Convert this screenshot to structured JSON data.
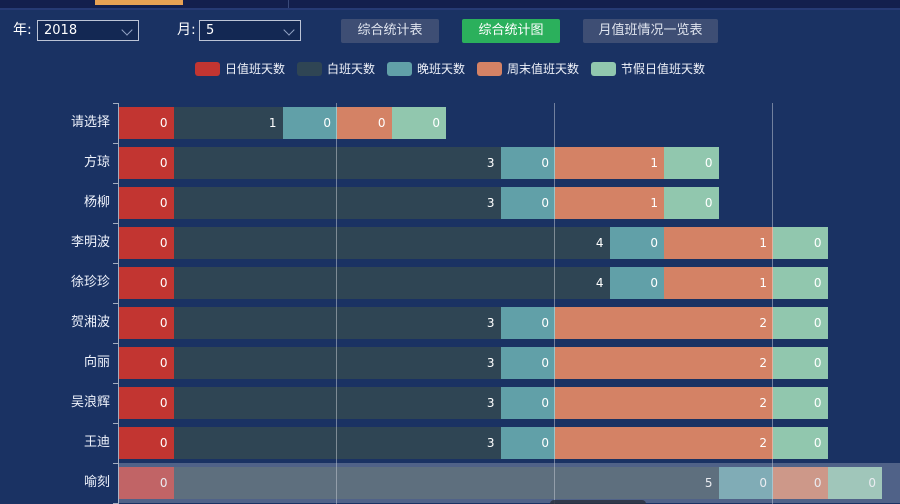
{
  "controls": {
    "year_label": "年:",
    "year_value": "2018",
    "month_label": "月:",
    "month_value": "5",
    "buttons": [
      {
        "label": "综合统计表",
        "type": "default"
      },
      {
        "label": "综合统计图",
        "type": "active",
        "color": "#2bb05c"
      },
      {
        "label": "月值班情况一览表",
        "type": "default"
      }
    ]
  },
  "legend": [
    {
      "label": "日值班天数",
      "color": "#c23531"
    },
    {
      "label": "白班天数",
      "color": "#2f4554"
    },
    {
      "label": "晚班天数",
      "color": "#61a0a8"
    },
    {
      "label": "周末值班天数",
      "color": "#d48265"
    },
    {
      "label": "节假日值班天数",
      "color": "#91c7ae"
    }
  ],
  "chart_data": {
    "type": "bar",
    "orientation": "horizontal",
    "stacked": true,
    "grid": true,
    "legend_position": "top-center",
    "categories": [
      "请选择",
      "方琼",
      "杨柳",
      "李明波",
      "徐珍珍",
      "贺湘波",
      "向丽",
      "吴浪辉",
      "王迪",
      "喻刻"
    ],
    "series": [
      {
        "name": "日值班天数",
        "color": "#c23531",
        "values": [
          0,
          0,
          0,
          0,
          0,
          0,
          0,
          0,
          0,
          0
        ]
      },
      {
        "name": "白班天数",
        "color": "#2f4554",
        "values": [
          1,
          3,
          3,
          4,
          4,
          3,
          3,
          3,
          3,
          5
        ]
      },
      {
        "name": "晚班天数",
        "color": "#61a0a8",
        "values": [
          0,
          0,
          0,
          0,
          0,
          0,
          0,
          0,
          0,
          0
        ]
      },
      {
        "name": "周末值班天数",
        "color": "#d48265",
        "values": [
          0,
          1,
          1,
          1,
          1,
          2,
          2,
          2,
          2,
          0
        ]
      },
      {
        "name": "节假日值班天数",
        "color": "#91c7ae",
        "values": [
          0,
          0,
          0,
          0,
          0,
          0,
          0,
          0,
          0,
          0
        ]
      }
    ],
    "value_labels": "inside-right, equal to series value",
    "highlighted_category": "喻刻"
  }
}
